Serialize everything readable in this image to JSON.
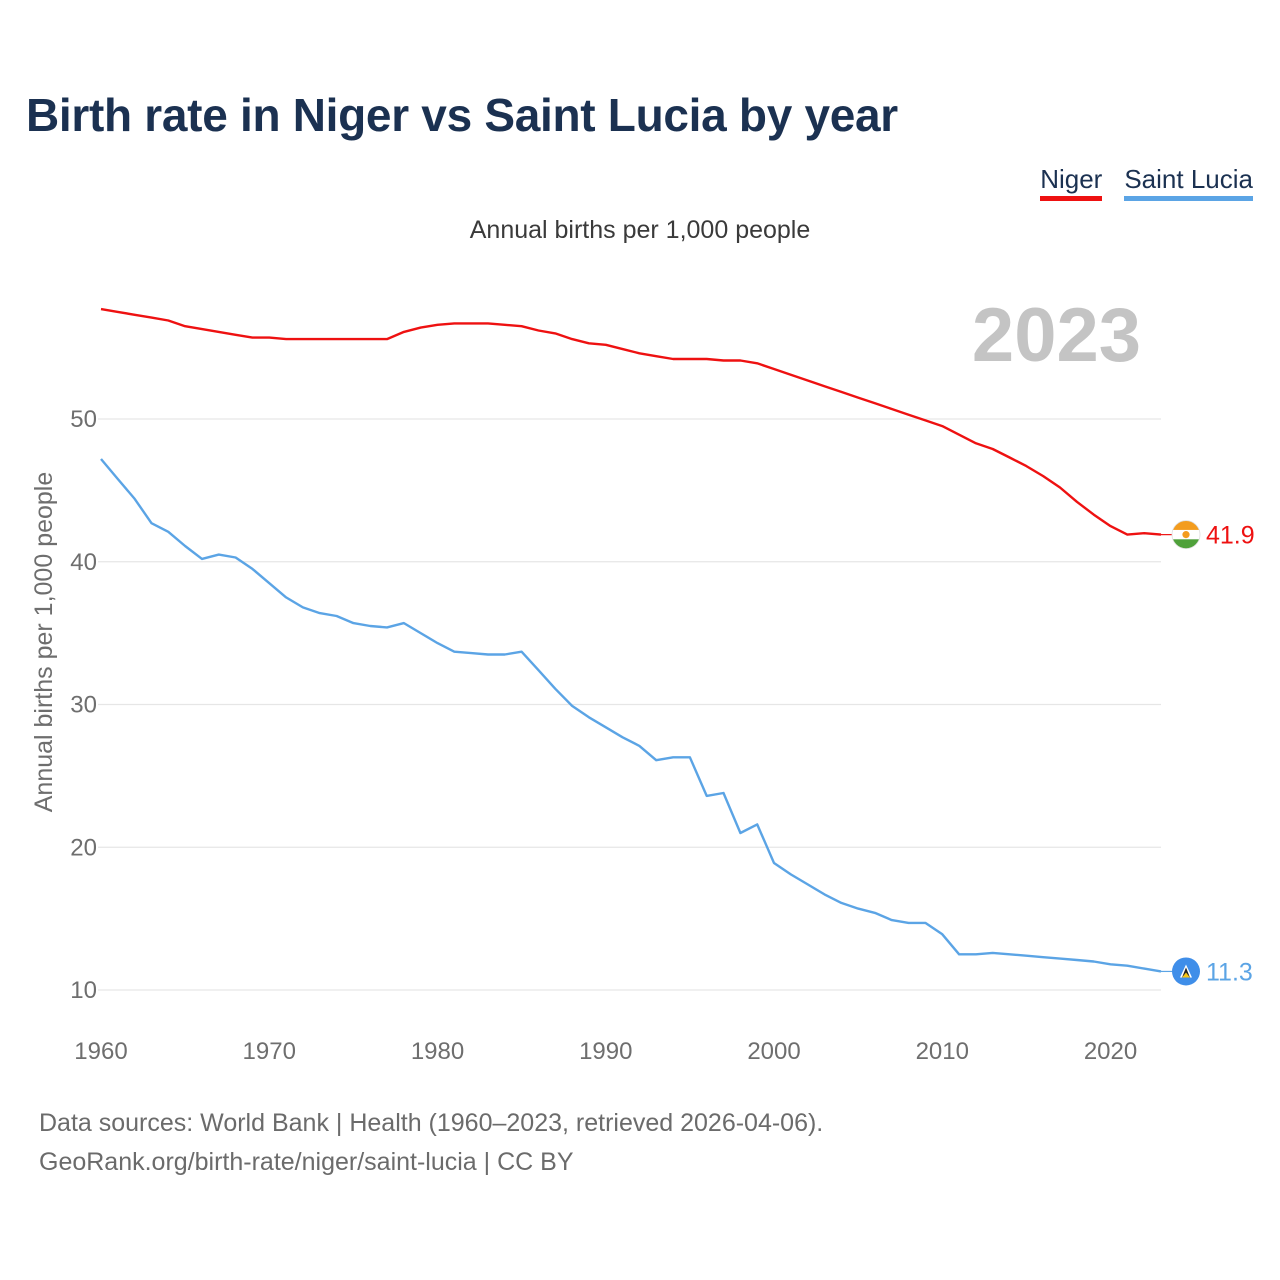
{
  "title": "Birth rate in Niger vs Saint Lucia by year",
  "subtitle": "Annual births per 1,000 people",
  "legend": [
    {
      "label": "Niger",
      "color": "#ee1111"
    },
    {
      "label": "Saint Lucia",
      "color": "#5ba4e5"
    }
  ],
  "source_line1": "Data sources: World Bank | Health (1960–2023, retrieved 2026-04-06).",
  "source_line2": "GeoRank.org/birth-rate/niger/saint-lucia | CC BY",
  "chart_data": {
    "type": "line",
    "title": "Birth rate in Niger vs Saint Lucia by year",
    "xlabel": "",
    "ylabel": "Annual births per 1,000 people",
    "year_label": "2023",
    "xlim": [
      1960,
      2023
    ],
    "ylim": [
      10,
      58
    ],
    "x_ticks": [
      1960,
      1970,
      1980,
      1990,
      2000,
      2010,
      2020
    ],
    "y_ticks": [
      10,
      20,
      30,
      40,
      50
    ],
    "grid": true,
    "legend_position": "top-right",
    "x": [
      1960,
      1961,
      1962,
      1963,
      1964,
      1965,
      1966,
      1967,
      1968,
      1969,
      1970,
      1971,
      1972,
      1973,
      1974,
      1975,
      1976,
      1977,
      1978,
      1979,
      1980,
      1981,
      1982,
      1983,
      1984,
      1985,
      1986,
      1987,
      1988,
      1989,
      1990,
      1991,
      1992,
      1993,
      1994,
      1995,
      1996,
      1997,
      1998,
      1999,
      2000,
      2001,
      2002,
      2003,
      2004,
      2005,
      2006,
      2007,
      2008,
      2009,
      2010,
      2011,
      2012,
      2013,
      2014,
      2015,
      2016,
      2017,
      2018,
      2019,
      2020,
      2021,
      2022,
      2023
    ],
    "series": [
      {
        "name": "Niger",
        "color": "#ee1111",
        "end_label": "41.9",
        "values": [
          57.7,
          57.5,
          57.3,
          57.1,
          56.9,
          56.5,
          56.3,
          56.1,
          55.9,
          55.7,
          55.7,
          55.6,
          55.6,
          55.6,
          55.6,
          55.6,
          55.6,
          55.6,
          56.1,
          56.4,
          56.6,
          56.7,
          56.7,
          56.7,
          56.6,
          56.5,
          56.2,
          56.0,
          55.6,
          55.3,
          55.2,
          54.9,
          54.6,
          54.4,
          54.2,
          54.2,
          54.2,
          54.1,
          54.1,
          53.9,
          53.5,
          53.1,
          52.7,
          52.3,
          51.9,
          51.5,
          51.1,
          50.7,
          50.3,
          49.9,
          49.5,
          48.9,
          48.3,
          47.9,
          47.3,
          46.7,
          46.0,
          45.2,
          44.2,
          43.3,
          42.5,
          41.9,
          42.0,
          41.9
        ]
      },
      {
        "name": "Saint Lucia",
        "color": "#5ba4e5",
        "end_label": "11.3",
        "values": [
          47.2,
          45.8,
          44.4,
          42.7,
          42.1,
          41.1,
          40.2,
          40.5,
          40.3,
          39.5,
          38.5,
          37.5,
          36.8,
          36.4,
          36.2,
          35.7,
          35.5,
          35.4,
          35.7,
          35.0,
          34.3,
          33.7,
          33.6,
          33.5,
          33.5,
          33.7,
          32.4,
          31.1,
          29.9,
          29.1,
          28.4,
          27.7,
          27.1,
          26.1,
          26.3,
          26.3,
          23.6,
          23.8,
          21.0,
          21.6,
          18.9,
          18.1,
          17.4,
          16.7,
          16.1,
          15.7,
          15.4,
          14.9,
          14.7,
          14.7,
          13.9,
          12.5,
          12.5,
          12.6,
          12.5,
          12.4,
          12.3,
          12.2,
          12.1,
          12.0,
          11.8,
          11.7,
          11.5,
          11.3
        ]
      }
    ]
  }
}
